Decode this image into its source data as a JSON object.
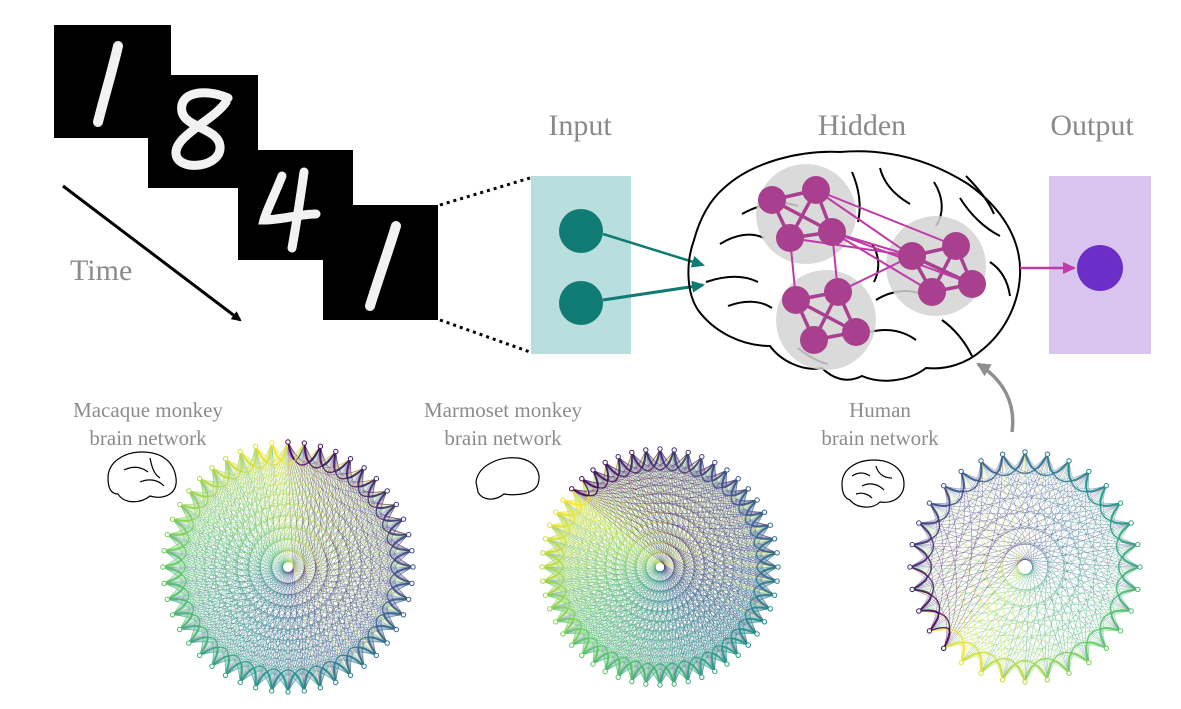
{
  "mnist_frames": [
    {
      "digit": "1"
    },
    {
      "digit": "8"
    },
    {
      "digit": "4"
    },
    {
      "digit": "1"
    }
  ],
  "time_label": "Time",
  "layers": {
    "input": {
      "label": "Input",
      "color": "#b8dedd",
      "node_color": "#0f7b72",
      "node_count": 2
    },
    "hidden": {
      "label": "Hidden",
      "node_color": "#a8408f",
      "cluster_color": "#d3d3d3",
      "node_count": 12,
      "cluster_count": 3
    },
    "output": {
      "label": "Output",
      "color": "#d8c4ee",
      "node_color": "#6b2fc8",
      "node_count": 1
    }
  },
  "networks": [
    {
      "title_line1": "Macaque monkey",
      "title_line2": "brain network",
      "icon": "macaque-brain-icon",
      "node_count": 48
    },
    {
      "title_line1": "Marmoset monkey",
      "title_line2": "brain network",
      "icon": "marmoset-brain-icon",
      "node_count": 52
    },
    {
      "title_line1": "Human",
      "title_line2": "brain network",
      "icon": "human-brain-icon",
      "node_count": 32
    }
  ],
  "colors": {
    "text": "#8a8a8a",
    "input_arrow": "#0f7b72",
    "hidden_output_arrow": "#c03aa8",
    "feedback_arrow": "#8f8f8f",
    "viridis": [
      "#440154",
      "#3b528b",
      "#21918c",
      "#5ec962",
      "#fde725"
    ]
  }
}
